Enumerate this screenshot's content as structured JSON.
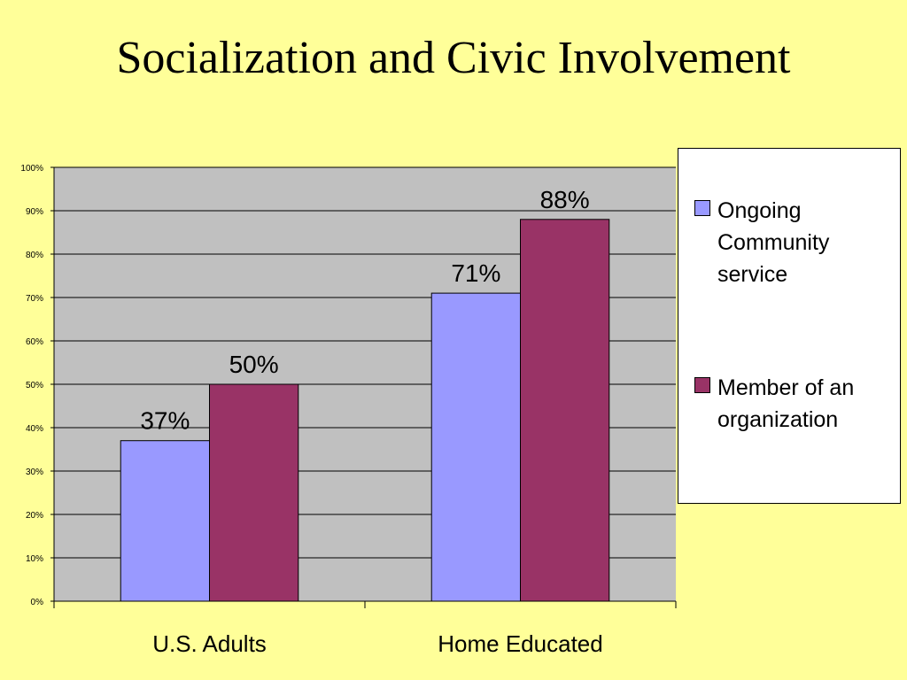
{
  "slide": {
    "title": "Socialization and Civic Involvement",
    "background": "#ffff99"
  },
  "chart_data": {
    "type": "bar",
    "title": "",
    "xlabel": "",
    "ylabel": "",
    "categories": [
      "U.S. Adults",
      "Home Educated"
    ],
    "series": [
      {
        "name": "Ongoing Community service",
        "values": [
          37,
          71
        ],
        "labels": [
          "37%",
          "71%"
        ],
        "color": "#9999ff"
      },
      {
        "name": "Member of an organization",
        "values": [
          50,
          88
        ],
        "labels": [
          "50%",
          "88%"
        ],
        "color": "#993366"
      }
    ],
    "ylim": [
      0,
      100
    ],
    "yticks": [
      0,
      10,
      20,
      30,
      40,
      50,
      60,
      70,
      80,
      90,
      100
    ],
    "ytick_labels": [
      "0%",
      "10%",
      "20%",
      "30%",
      "40%",
      "50%",
      "60%",
      "70%",
      "80%",
      "90%",
      "100%"
    ],
    "grid": true,
    "plot_background": "#c0c0c0",
    "legend_position": "right"
  }
}
